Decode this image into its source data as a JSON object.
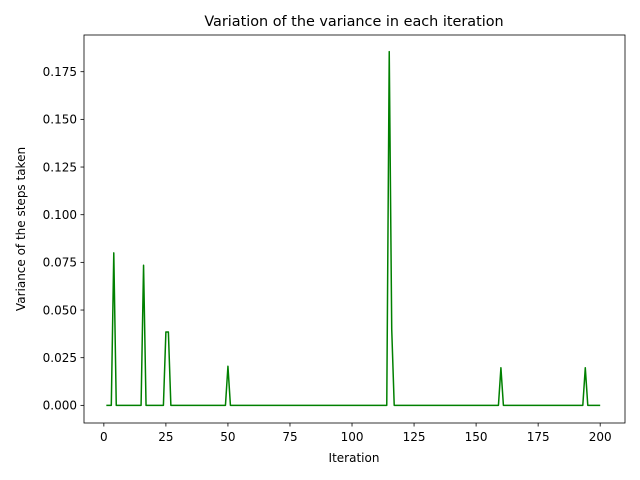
{
  "chart_data": {
    "type": "line",
    "title": "Variation of the variance in each iteration",
    "xlabel": "Iteration",
    "ylabel": "Variance of the steps taken",
    "xlim": [
      -8,
      210
    ],
    "ylim": [
      -0.00925,
      0.19425
    ],
    "xticks": [
      0,
      25,
      50,
      75,
      100,
      125,
      150,
      175,
      200
    ],
    "yticks": [
      0.0,
      0.025,
      0.05,
      0.075,
      0.1,
      0.125,
      0.15,
      0.175
    ],
    "ytick_labels": [
      "0.000",
      "0.025",
      "0.050",
      "0.075",
      "0.100",
      "0.125",
      "0.150",
      "0.175"
    ],
    "grid": false,
    "series": [
      {
        "color": "#008000",
        "points": [
          [
            1,
            0.0
          ],
          [
            3,
            0.0
          ],
          [
            4,
            0.08
          ],
          [
            5,
            0.0
          ],
          [
            15,
            0.0
          ],
          [
            16,
            0.0735
          ],
          [
            17,
            0.0
          ],
          [
            24,
            0.0
          ],
          [
            25,
            0.0385
          ],
          [
            26,
            0.0385
          ],
          [
            27,
            0.0
          ],
          [
            49,
            0.0
          ],
          [
            50,
            0.0205
          ],
          [
            51,
            0.0
          ],
          [
            114,
            0.0
          ],
          [
            115,
            0.1855
          ],
          [
            116,
            0.04
          ],
          [
            117,
            0.0
          ],
          [
            159,
            0.0
          ],
          [
            160,
            0.0197
          ],
          [
            161,
            0.0
          ],
          [
            193,
            0.0
          ],
          [
            194,
            0.0197
          ],
          [
            195,
            0.0
          ],
          [
            200,
            0.0
          ]
        ]
      }
    ]
  }
}
